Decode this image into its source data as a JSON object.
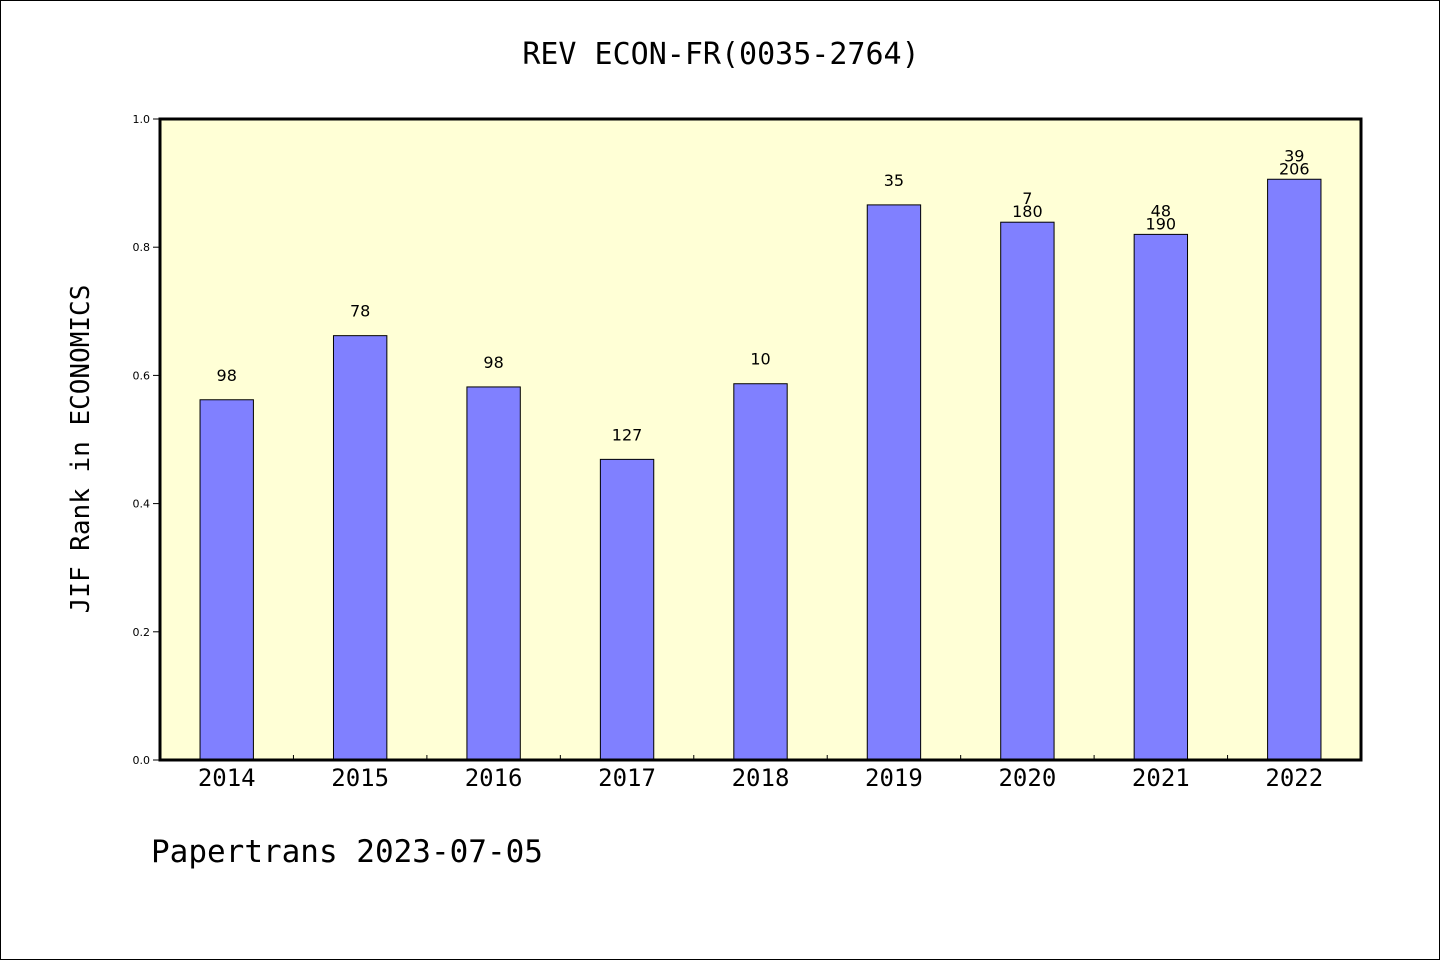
{
  "chart_data": {
    "type": "bar",
    "title": "REV ECON-FR(0035-2764)",
    "ylabel": "JIF Rank in ECONOMICS",
    "xlabel": "",
    "ylim": [
      0,
      1.0
    ],
    "yticks": [
      "0.0",
      "0.2",
      "0.4",
      "0.6",
      "0.8",
      "1.0"
    ],
    "grid": false,
    "categories": [
      "2014",
      "2015",
      "2016",
      "2017",
      "2018",
      "2019",
      "2020",
      "2021",
      "2022"
    ],
    "values": [
      0.562,
      0.662,
      0.582,
      0.469,
      0.587,
      0.866,
      0.839,
      0.82,
      0.906
    ],
    "data_labels": [
      [
        "98"
      ],
      [
        "78"
      ],
      [
        "98"
      ],
      [
        "127"
      ],
      [
        "10"
      ],
      [
        "35"
      ],
      [
        "7",
        "180"
      ],
      [
        "48",
        "190"
      ],
      [
        "39",
        "206"
      ]
    ],
    "colors": {
      "bar_fill": "#8080ff",
      "plot_background": "#ffffd6",
      "axis": "#000000"
    }
  },
  "footer": {
    "credit": "Papertrans 2023-07-05"
  }
}
